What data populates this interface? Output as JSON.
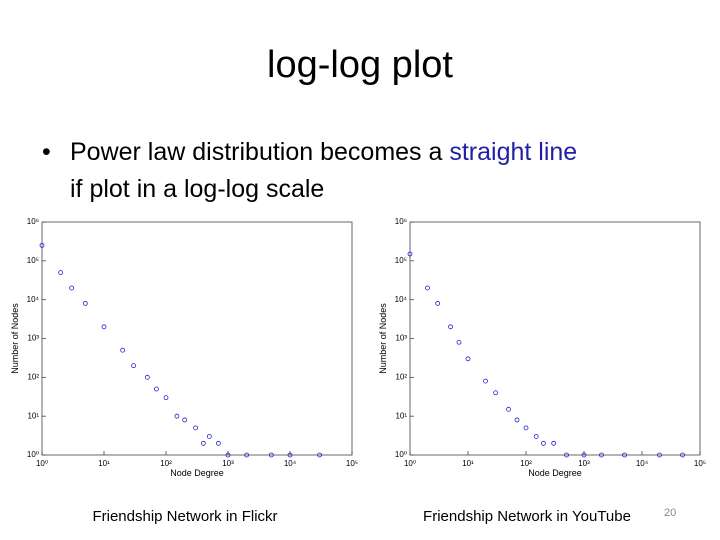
{
  "slide": {
    "title": "log-log plot",
    "bullet": [
      "Power law distribution becomes a",
      "straight line",
      "if plot in a log-log scale"
    ],
    "page_number": "20"
  },
  "chart_data": [
    {
      "type": "scatter",
      "caption": "Friendship Network in Flickr",
      "xlabel": "Node Degree",
      "ylabel": "Number of Nodes",
      "log_x": true,
      "log_y": true,
      "color": "#2222cc",
      "x": [
        1,
        2,
        3,
        5,
        10,
        20,
        30,
        50,
        70,
        100,
        150,
        200,
        300,
        400,
        500,
        700,
        1000,
        2000,
        5000,
        10000,
        30000
      ],
      "values": [
        250000,
        50000,
        20000,
        8000,
        2000,
        500,
        200,
        100,
        50,
        30,
        10,
        8,
        5,
        2,
        3,
        2,
        1,
        1,
        1,
        1,
        1
      ],
      "xlim": [
        1,
        100000
      ],
      "ylim": [
        1,
        1000000
      ],
      "xticks": [
        {
          "value": 1,
          "label": "10⁰"
        },
        {
          "value": 10,
          "label": "10¹"
        },
        {
          "value": 100,
          "label": "10²"
        },
        {
          "value": 1000,
          "label": "10³"
        },
        {
          "value": 10000,
          "label": "10⁴"
        },
        {
          "value": 100000,
          "label": "10⁵"
        }
      ],
      "yticks": [
        {
          "value": 1,
          "label": "10⁰"
        },
        {
          "value": 10,
          "label": "10¹"
        },
        {
          "value": 100,
          "label": "10²"
        },
        {
          "value": 1000,
          "label": "10³"
        },
        {
          "value": 10000,
          "label": "10⁴"
        },
        {
          "value": 100000,
          "label": "10⁵"
        },
        {
          "value": 1000000,
          "label": "10⁶"
        }
      ]
    },
    {
      "type": "scatter",
      "caption": "Friendship Network in YouTube",
      "xlabel": "Node Degree",
      "ylabel": "Number of Nodes",
      "log_x": true,
      "log_y": true,
      "color": "#2222cc",
      "x": [
        1,
        2,
        3,
        5,
        7,
        10,
        20,
        30,
        50,
        70,
        100,
        150,
        200,
        300,
        500,
        1000,
        2000,
        5000,
        20000,
        50000
      ],
      "values": [
        150000,
        20000,
        8000,
        2000,
        800,
        300,
        80,
        40,
        15,
        8,
        5,
        3,
        2,
        2,
        1,
        1,
        1,
        1,
        1,
        1
      ],
      "xlim": [
        1,
        100000
      ],
      "ylim": [
        1,
        1000000
      ],
      "xticks": [
        {
          "value": 1,
          "label": "10⁰"
        },
        {
          "value": 10,
          "label": "10¹"
        },
        {
          "value": 100,
          "label": "10²"
        },
        {
          "value": 1000,
          "label": "10³"
        },
        {
          "value": 10000,
          "label": "10⁴"
        },
        {
          "value": 100000,
          "label": "10⁵"
        }
      ],
      "yticks": [
        {
          "value": 1,
          "label": "10⁰"
        },
        {
          "value": 10,
          "label": "10¹"
        },
        {
          "value": 100,
          "label": "10²"
        },
        {
          "value": 1000,
          "label": "10³"
        },
        {
          "value": 10000,
          "label": "10⁴"
        },
        {
          "value": 100000,
          "label": "10⁵"
        },
        {
          "value": 1000000,
          "label": "10⁶"
        }
      ]
    }
  ]
}
